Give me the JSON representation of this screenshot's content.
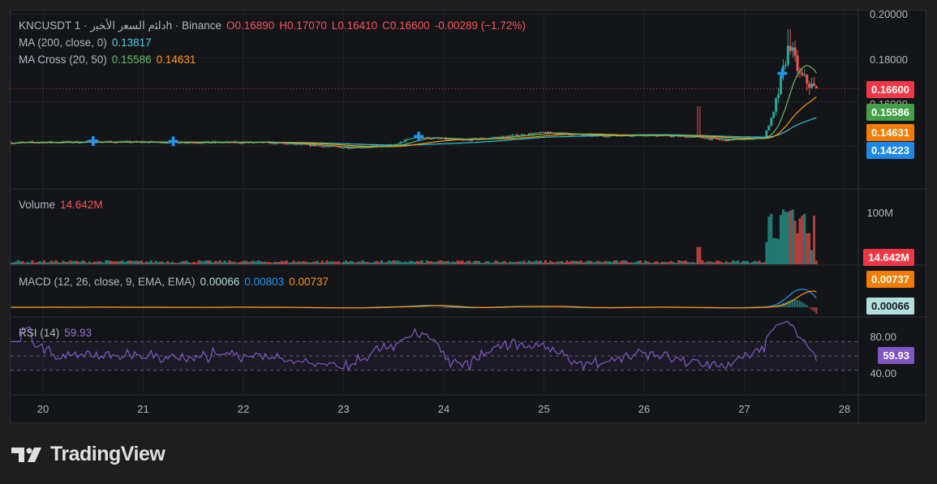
{
  "header": {
    "symbol": "KNCUSDT 1 · ﺩﺍﺌﻡ ﺍﻟﺴﻌﺭ ﺍﻷﺨﻴﺭh · Binance",
    "open": "O0.16890",
    "high": "H0.17070",
    "low": "L0.16410",
    "close": "C0.16600",
    "change": "-0.00289 (−1.72%)"
  },
  "indicators": {
    "ma200_label": "MA (200, close, 0)",
    "ma200_value": "0.13817",
    "macross_label": "MA Cross (20, 50)",
    "macross_fast": "0.15586",
    "macross_slow": "0.14631",
    "volume_label": "Volume",
    "volume_value": "14.642M",
    "macd_label": "MACD (12, 26, close, 9, EMA, EMA)",
    "macd_hist": "0.00066",
    "macd_line": "0.00803",
    "macd_signal": "0.00737",
    "rsi_label": "RSI (14)",
    "rsi_value": "59.93"
  },
  "price_axis": {
    "ticks": [
      "0.20000",
      "0.18000",
      "0.16000"
    ],
    "tags": [
      {
        "text": "0.16600",
        "color": "#f23645"
      },
      {
        "text": "0.15586",
        "color": "#43a047"
      },
      {
        "text": "0.14631",
        "color": "#f57c00"
      },
      {
        "text": "0.14223",
        "color": "#1e88e5"
      }
    ]
  },
  "volume_axis": {
    "tick": "100M",
    "tag": "14.642M",
    "tag_color": "#f23645"
  },
  "macd_axis": {
    "tags": [
      {
        "text": "0.00737",
        "color": "#f57c00"
      },
      {
        "text": "0.00066",
        "color": "#b2dfdb"
      }
    ]
  },
  "rsi_axis": {
    "ticks": [
      "80.00",
      "40.00"
    ],
    "tag": "59.93",
    "tag_color": "#7e57c2"
  },
  "x_axis": {
    "labels": [
      "20",
      "21",
      "22",
      "23",
      "24",
      "25",
      "26",
      "27",
      "28"
    ]
  },
  "colors": {
    "up": "#26a69a",
    "down": "#ef5350",
    "ma200": "#26c6da",
    "fast": "#66bb6a",
    "slow": "#ff9800",
    "macd": "#2196f3",
    "signal": "#ff9800",
    "rsi": "#7e57c2",
    "cross": "#2196f3"
  },
  "brand": {
    "name": "TradingView"
  },
  "chart_data": {
    "type": "line",
    "title": "",
    "x_day_labels": [
      20,
      21,
      22,
      23,
      24,
      25,
      26,
      27,
      28
    ],
    "price_key_points": [
      {
        "day": 19.7,
        "price": 0.1415
      },
      {
        "day": 20.5,
        "price": 0.1418
      },
      {
        "day": 21.5,
        "price": 0.1416
      },
      {
        "day": 22.2,
        "price": 0.1415
      },
      {
        "day": 22.6,
        "price": 0.1405
      },
      {
        "day": 23.0,
        "price": 0.1392
      },
      {
        "day": 23.5,
        "price": 0.1402
      },
      {
        "day": 23.7,
        "price": 0.144
      },
      {
        "day": 24.2,
        "price": 0.1425
      },
      {
        "day": 24.6,
        "price": 0.1442
      },
      {
        "day": 25.0,
        "price": 0.146
      },
      {
        "day": 25.5,
        "price": 0.1445
      },
      {
        "day": 26.0,
        "price": 0.145
      },
      {
        "day": 26.5,
        "price": 0.144
      },
      {
        "day": 26.8,
        "price": 0.1425
      },
      {
        "day": 27.2,
        "price": 0.144
      },
      {
        "day": 27.3,
        "price": 0.156
      },
      {
        "day": 27.45,
        "price": 0.187
      },
      {
        "day": 27.55,
        "price": 0.172
      },
      {
        "day": 27.7,
        "price": 0.166
      }
    ],
    "ylim": [
      0.13,
      0.2
    ],
    "current_price": 0.166,
    "ma_fast": 0.15586,
    "ma_slow": 0.14631,
    "ma200": 0.13817,
    "volume_current_m": 14.642,
    "rsi_current": 59.93
  }
}
